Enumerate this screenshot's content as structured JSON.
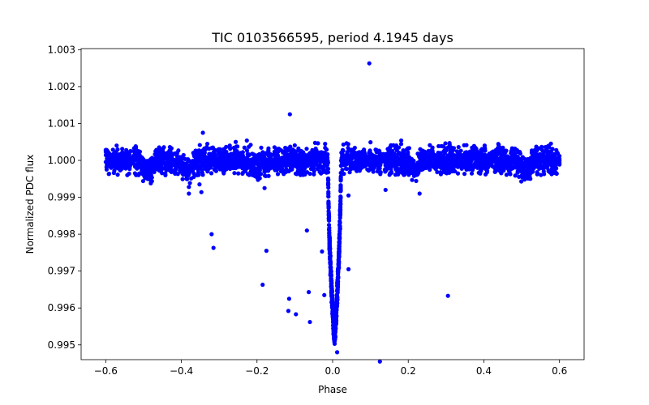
{
  "chart_data": {
    "type": "scatter",
    "title": "TIC 0103566595, period 4.1945 days",
    "xlabel": "Phase",
    "ylabel": "Normalized PDC flux",
    "xlim": [
      -0.665,
      0.665
    ],
    "ylim": [
      0.9946,
      1.00303
    ],
    "xticks": [
      -0.6,
      -0.4,
      -0.2,
      0.0,
      0.2,
      0.4,
      0.6
    ],
    "xtick_labels": [
      "−0.6",
      "−0.4",
      "−0.2",
      "0.0",
      "0.2",
      "0.4",
      "0.6"
    ],
    "yticks": [
      0.995,
      0.996,
      0.997,
      0.998,
      0.999,
      1.0,
      1.001,
      1.002,
      1.003
    ],
    "ytick_labels": [
      "0.995",
      "0.996",
      "0.997",
      "0.998",
      "0.999",
      "1.000",
      "1.001",
      "1.002",
      "1.003"
    ],
    "marker_color": "#0000ff",
    "marker": "circle",
    "grid": false,
    "series": [
      {
        "name": "PDC flux",
        "baseline": {
          "phase_range": [
            -0.6,
            0.6
          ],
          "flux_center": 1.0,
          "flux_scatter_sigma": 0.00017,
          "upper_envelope": 1.0006,
          "lower_envelope": 0.9996,
          "dips": [
            {
              "phase": -0.49,
              "depth": 0.0003,
              "width": 0.012
            },
            {
              "phase": -0.385,
              "depth": 0.0003,
              "width": 0.012
            },
            {
              "phase": -0.2,
              "depth": 0.0002,
              "width": 0.015
            },
            {
              "phase": 0.22,
              "depth": 0.0002,
              "width": 0.012
            },
            {
              "phase": 0.51,
              "depth": 0.0003,
              "width": 0.012
            }
          ]
        },
        "transit": {
          "center_phase": 0.005,
          "depth": 0.0049,
          "half_width": 0.017,
          "min_flux": 0.9951
        },
        "outliers": [
          {
            "x": 0.097,
            "y": 1.00263
          },
          {
            "x": -0.113,
            "y": 1.00125
          },
          {
            "x": -0.343,
            "y": 1.00075
          },
          {
            "x": -0.352,
            "y": 0.99935
          },
          {
            "x": -0.38,
            "y": 0.99928
          },
          {
            "x": -0.38,
            "y": 0.9991
          },
          {
            "x": -0.347,
            "y": 0.99914
          },
          {
            "x": -0.18,
            "y": 0.99925
          },
          {
            "x": 0.14,
            "y": 0.9992
          },
          {
            "x": 0.23,
            "y": 0.9991
          },
          {
            "x": 0.042,
            "y": 0.99905
          },
          {
            "x": -0.32,
            "y": 0.998
          },
          {
            "x": -0.315,
            "y": 0.99763
          },
          {
            "x": -0.175,
            "y": 0.99755
          },
          {
            "x": -0.068,
            "y": 0.9981
          },
          {
            "x": -0.028,
            "y": 0.99753
          },
          {
            "x": 0.042,
            "y": 0.99705
          },
          {
            "x": -0.185,
            "y": 0.99663
          },
          {
            "x": -0.115,
            "y": 0.99625
          },
          {
            "x": -0.063,
            "y": 0.99643
          },
          {
            "x": -0.022,
            "y": 0.99635
          },
          {
            "x": -0.117,
            "y": 0.99592
          },
          {
            "x": -0.097,
            "y": 0.99583
          },
          {
            "x": -0.06,
            "y": 0.99562
          },
          {
            "x": 0.305,
            "y": 0.99633
          },
          {
            "x": 0.012,
            "y": 0.9948
          },
          {
            "x": 0.125,
            "y": 0.99455
          }
        ]
      }
    ]
  }
}
